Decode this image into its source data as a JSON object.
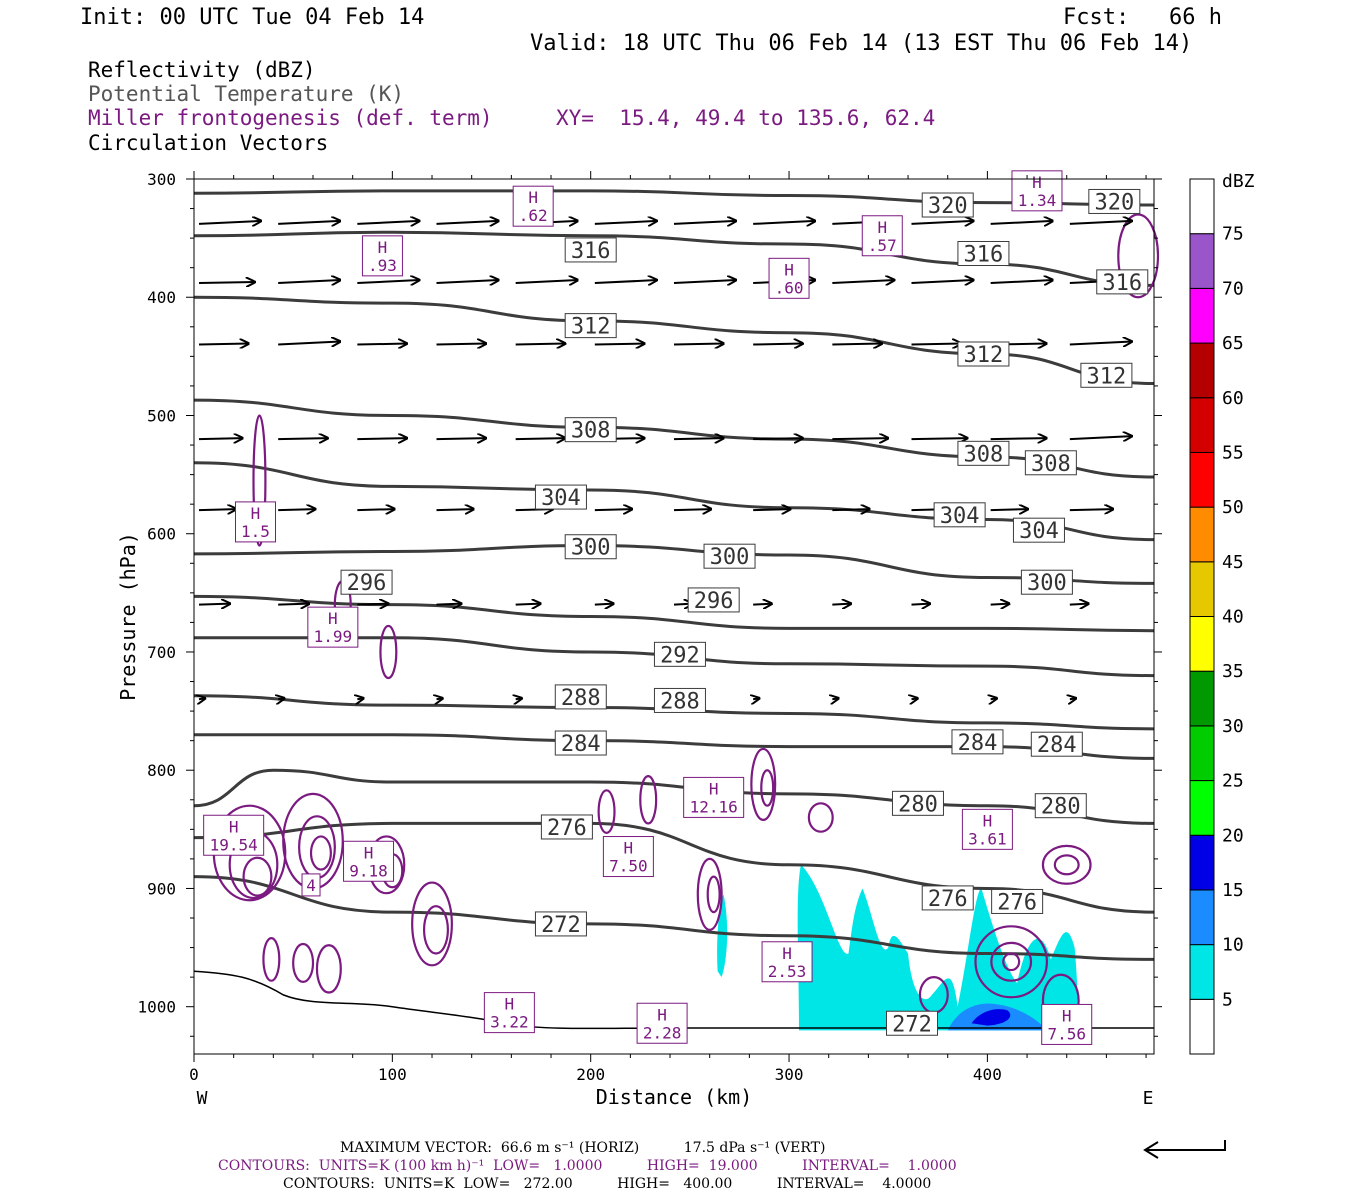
{
  "header": {
    "init": "Init: 00 UTC Tue 04 Feb 14",
    "fcst": "Fcst:   66 h",
    "valid": "Valid: 18 UTC Thu 06 Feb 14 (13 EST Thu 06 Feb 14)"
  },
  "legend": {
    "reflectivity": "Reflectivity (dBZ)",
    "theta": "Potential Temperature (K)",
    "miller": "Miller frontogenesis (def. term)",
    "xy": "XY=  15.4, 49.4 to 135.6, 62.4",
    "circulation": "Circulation Vectors"
  },
  "colors": {
    "theta": "#3c3c3c",
    "miller": "#7b1a80",
    "legend_gray": "#555555",
    "reflectivity_scale": [
      "#ffffff",
      "#00e6e6",
      "#1a8cff",
      "#0000e6",
      "#00ff00",
      "#00cc00",
      "#009900",
      "#ffff00",
      "#e6c800",
      "#ff8c00",
      "#ff0000",
      "#d40000",
      "#b40000",
      "#ff00ff",
      "#9955c9",
      "#ffffff"
    ]
  },
  "chart_data": {
    "type": "cross-section",
    "xlabel": "Distance (km)",
    "ylabel": "Pressure (hPa)",
    "xlim": [
      0,
      484
    ],
    "ylim": [
      1040,
      300
    ],
    "x_ticks": [
      0,
      100,
      200,
      300,
      400
    ],
    "y_ticks": [
      300,
      400,
      500,
      600,
      700,
      800,
      900,
      1000
    ],
    "x_end_labels": [
      "W",
      "E"
    ],
    "colorbar": {
      "units": "dBZ",
      "levels": [
        5,
        10,
        15,
        20,
        25,
        30,
        35,
        40,
        45,
        50,
        55,
        60,
        65,
        70,
        75
      ]
    },
    "theta_contours": [
      {
        "label": "320",
        "points": [
          [
            0,
            312
          ],
          [
            100,
            310
          ],
          [
            200,
            310
          ],
          [
            300,
            314
          ],
          [
            400,
            320
          ],
          [
            484,
            322
          ]
        ],
        "labels_at": [
          [
            380,
            322
          ],
          [
            464,
            319
          ]
        ]
      },
      {
        "label": "316",
        "points": [
          [
            0,
            348
          ],
          [
            100,
            345
          ],
          [
            200,
            348
          ],
          [
            300,
            355
          ],
          [
            400,
            372
          ],
          [
            484,
            390
          ]
        ],
        "labels_at": [
          [
            200,
            360
          ],
          [
            398,
            363
          ],
          [
            468,
            387
          ]
        ]
      },
      {
        "label": "312",
        "points": [
          [
            0,
            400
          ],
          [
            100,
            405
          ],
          [
            200,
            420
          ],
          [
            300,
            430
          ],
          [
            400,
            448
          ],
          [
            484,
            473
          ]
        ],
        "labels_at": [
          [
            200,
            424
          ],
          [
            398,
            448
          ],
          [
            460,
            466
          ]
        ]
      },
      {
        "label": "308",
        "points": [
          [
            0,
            487
          ],
          [
            100,
            500
          ],
          [
            200,
            510
          ],
          [
            300,
            520
          ],
          [
            400,
            535
          ],
          [
            484,
            552
          ]
        ],
        "labels_at": [
          [
            200,
            512
          ],
          [
            398,
            532
          ],
          [
            432,
            540
          ]
        ]
      },
      {
        "label": "304",
        "points": [
          [
            0,
            540
          ],
          [
            100,
            560
          ],
          [
            200,
            563
          ],
          [
            300,
            578
          ],
          [
            400,
            588
          ],
          [
            484,
            605
          ]
        ],
        "labels_at": [
          [
            185,
            569
          ],
          [
            386,
            584
          ],
          [
            426,
            597
          ]
        ]
      },
      {
        "label": "300",
        "points": [
          [
            0,
            617
          ],
          [
            100,
            615
          ],
          [
            200,
            610
          ],
          [
            300,
            618
          ],
          [
            400,
            637
          ],
          [
            484,
            642
          ]
        ],
        "labels_at": [
          [
            200,
            611
          ],
          [
            270,
            619
          ],
          [
            430,
            641
          ]
        ]
      },
      {
        "label": "296",
        "points": [
          [
            0,
            653
          ],
          [
            100,
            660
          ],
          [
            200,
            670
          ],
          [
            300,
            680
          ],
          [
            400,
            680
          ],
          [
            484,
            682
          ]
        ],
        "labels_at": [
          [
            87,
            641
          ],
          [
            262,
            656
          ]
        ]
      },
      {
        "label": "292",
        "points": [
          [
            0,
            688
          ],
          [
            100,
            688
          ],
          [
            200,
            700
          ],
          [
            300,
            710
          ],
          [
            400,
            712
          ],
          [
            484,
            720
          ]
        ],
        "labels_at": [
          [
            245,
            702
          ]
        ]
      },
      {
        "label": "288",
        "points": [
          [
            0,
            737
          ],
          [
            100,
            745
          ],
          [
            200,
            747
          ],
          [
            300,
            752
          ],
          [
            400,
            760
          ],
          [
            484,
            765
          ]
        ],
        "labels_at": [
          [
            195,
            738
          ],
          [
            245,
            741
          ]
        ]
      },
      {
        "label": "284",
        "points": [
          [
            0,
            770
          ],
          [
            100,
            770
          ],
          [
            200,
            775
          ],
          [
            300,
            780
          ],
          [
            400,
            780
          ],
          [
            484,
            790
          ]
        ],
        "labels_at": [
          [
            195,
            777
          ],
          [
            395,
            776
          ],
          [
            435,
            778
          ]
        ]
      },
      {
        "label": "280",
        "points": [
          [
            0,
            830
          ],
          [
            40,
            800
          ],
          [
            100,
            810
          ],
          [
            200,
            810
          ],
          [
            300,
            820
          ],
          [
            400,
            830
          ],
          [
            484,
            845
          ]
        ],
        "labels_at": [
          [
            365,
            828
          ],
          [
            437,
            830
          ]
        ]
      },
      {
        "label": "276",
        "points": [
          [
            0,
            857
          ],
          [
            100,
            845
          ],
          [
            200,
            845
          ],
          [
            300,
            880
          ],
          [
            400,
            900
          ],
          [
            484,
            920
          ]
        ],
        "labels_at": [
          [
            188,
            848
          ],
          [
            380,
            908
          ],
          [
            415,
            911
          ]
        ]
      },
      {
        "label": "272",
        "points": [
          [
            0,
            890
          ],
          [
            100,
            920
          ],
          [
            200,
            930
          ],
          [
            300,
            940
          ],
          [
            400,
            955
          ],
          [
            484,
            960
          ]
        ],
        "labels_at": [
          [
            185,
            930
          ],
          [
            362,
            1014
          ]
        ]
      }
    ],
    "miller_highs": [
      {
        "label": ".62",
        "x": 171,
        "p": 323
      },
      {
        "label": ".93",
        "x": 95,
        "p": 365
      },
      {
        "label": ".60",
        "x": 300,
        "p": 384
      },
      {
        "label": ".57",
        "x": 347,
        "p": 348
      },
      {
        "label": "1.34",
        "x": 425,
        "p": 310
      },
      {
        "label": "1.5",
        "x": 31,
        "p": 590
      },
      {
        "label": "1.99",
        "x": 70,
        "p": 679
      },
      {
        "label": "19.54",
        "x": 20,
        "p": 855
      },
      {
        "label": "9.18",
        "x": 88,
        "p": 877
      },
      {
        "label": "12.16",
        "x": 262,
        "p": 823
      },
      {
        "label": "7.50",
        "x": 219,
        "p": 873
      },
      {
        "label": "3.61",
        "x": 400,
        "p": 850
      },
      {
        "label": "2.53",
        "x": 299,
        "p": 962
      },
      {
        "label": "3.22",
        "x": 159,
        "p": 1005
      },
      {
        "label": "2.28",
        "x": 236,
        "p": 1014
      },
      {
        "label": "7.56",
        "x": 440,
        "p": 1015
      },
      {
        "label": "4",
        "x": 59,
        "p": 897
      }
    ],
    "vectors": {
      "max_vector_text": "MAXIMUM VECTOR:  66.6 m s⁻¹ (HORIZ)          17.5 dPa s⁻¹ (VERT)",
      "rows": [
        {
          "p": 338,
          "u": [
            1,
            1,
            1,
            1,
            1,
            1,
            1,
            1,
            1,
            1,
            1,
            1
          ]
        },
        {
          "p": 388,
          "u": [
            0.9,
            1,
            1,
            1,
            1,
            1,
            1,
            1,
            1,
            1,
            1,
            1
          ]
        },
        {
          "p": 440,
          "u": [
            0.8,
            1,
            0.8,
            0.8,
            0.8,
            0.8,
            0.8,
            0.8,
            0.8,
            0.8,
            0.9,
            1
          ]
        },
        {
          "p": 520,
          "u": [
            0.7,
            0.8,
            0.8,
            0.8,
            0.8,
            0.8,
            0.8,
            0.8,
            0.9,
            0.9,
            0.9,
            1
          ]
        },
        {
          "p": 580,
          "u": [
            0.6,
            0.6,
            0.6,
            0.6,
            0.6,
            0.6,
            0.6,
            0.6,
            0.6,
            0.6,
            0.6,
            0.7
          ]
        },
        {
          "p": 660,
          "u": [
            0.5,
            0.5,
            0.5,
            0.4,
            0.4,
            0.3,
            0.3,
            0.3,
            0.3,
            0.3,
            0.3,
            0.3
          ]
        },
        {
          "p": 740,
          "u": [
            0.1,
            0.1,
            0.1,
            0.1,
            0.1,
            0.1,
            0.1,
            0.1,
            0.1,
            0.1,
            0.1,
            0.1
          ]
        }
      ]
    }
  },
  "footer": {
    "max_vector": "MAXIMUM VECTOR:  66.6 m s⁻¹ (HORIZ)          17.5 dPa s⁻¹ (VERT)",
    "contours1": "CONTOURS:  UNITS=K (100 km h)⁻¹  LOW=   1.0000          HIGH=  19.000          INTERVAL=    1.0000",
    "contours2": "CONTOURS:  UNITS=K  LOW=   272.00          HIGH=   400.00          INTERVAL=    4.0000"
  }
}
